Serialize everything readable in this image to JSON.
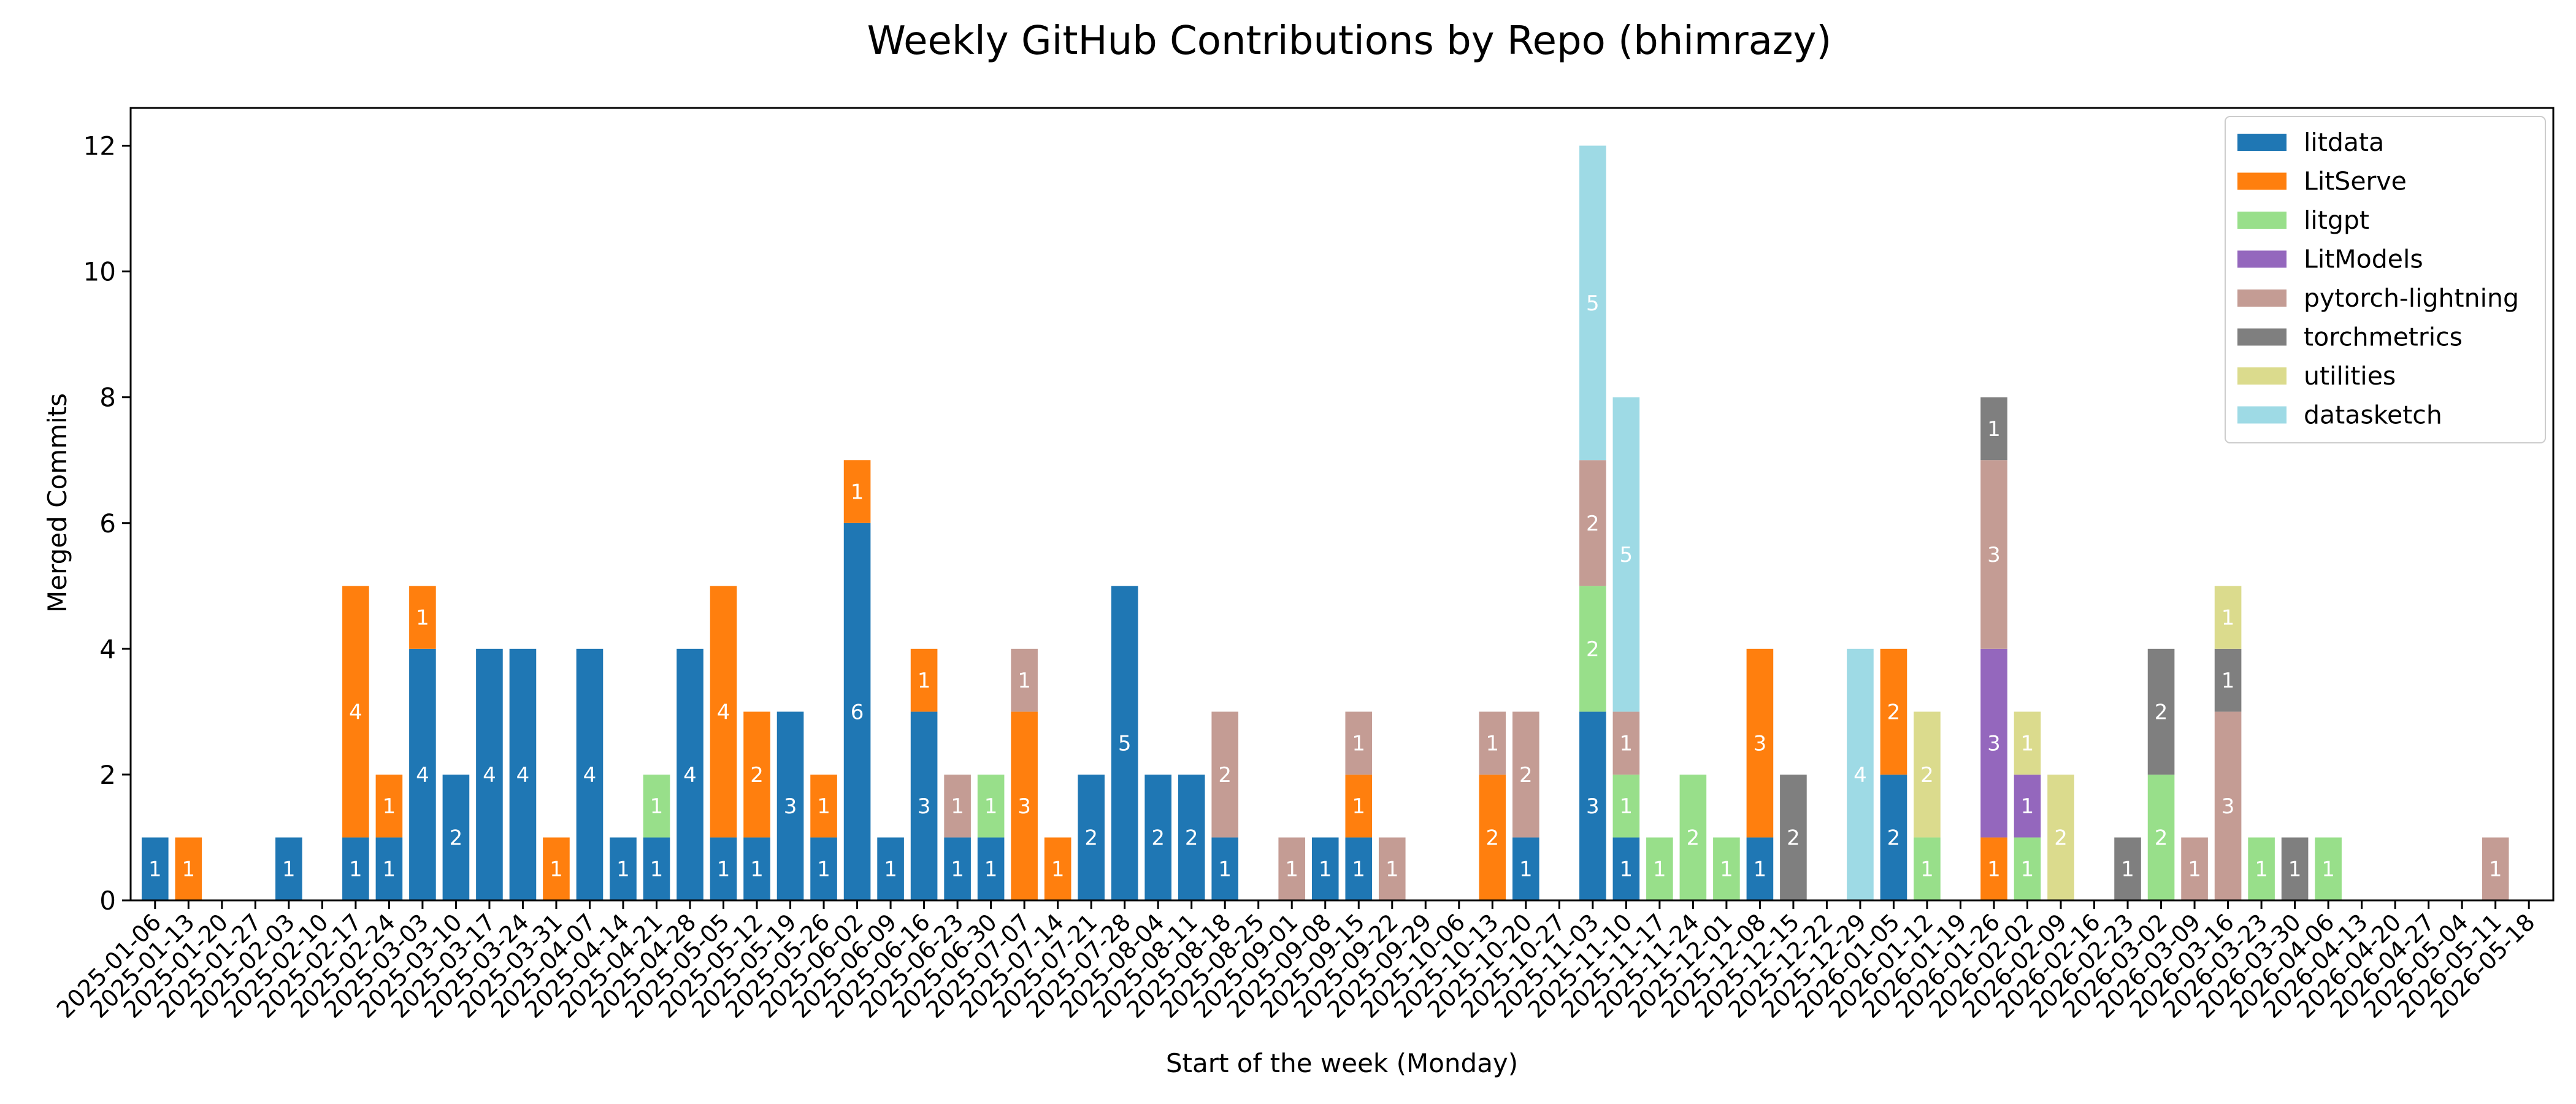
{
  "chart_data": {
    "type": "bar",
    "stacked": true,
    "title": "Weekly GitHub Contributions by Repo (bhimrazy)",
    "xlabel": "Start of the week (Monday)",
    "ylabel": "Merged Commits",
    "ylim": [
      0,
      12.6
    ],
    "yticks": [
      0,
      2,
      4,
      6,
      8,
      10,
      12
    ],
    "legend_position": "top-right",
    "grid": false,
    "categories": [
      "2025-01-06",
      "2025-01-13",
      "2025-01-20",
      "2025-01-27",
      "2025-02-03",
      "2025-02-10",
      "2025-02-17",
      "2025-02-24",
      "2025-03-03",
      "2025-03-10",
      "2025-03-17",
      "2025-03-24",
      "2025-03-31",
      "2025-04-07",
      "2025-04-14",
      "2025-04-21",
      "2025-04-28",
      "2025-05-05",
      "2025-05-12",
      "2025-05-19",
      "2025-05-26",
      "2025-06-02",
      "2025-06-09",
      "2025-06-16",
      "2025-06-23",
      "2025-06-30",
      "2025-07-07",
      "2025-07-14",
      "2025-07-21",
      "2025-07-28",
      "2025-08-04",
      "2025-08-11",
      "2025-08-18",
      "2025-08-25",
      "2025-09-01",
      "2025-09-08",
      "2025-09-15",
      "2025-09-22",
      "2025-09-29",
      "2025-10-06",
      "2025-10-13",
      "2025-10-20",
      "2025-10-27",
      "2025-11-03",
      "2025-11-10",
      "2025-11-17",
      "2025-11-24",
      "2025-12-01",
      "2025-12-08",
      "2025-12-15",
      "2025-12-22",
      "2025-12-29",
      "2026-01-05",
      "2026-01-12",
      "2026-01-19",
      "2026-01-26",
      "2026-02-02",
      "2026-02-09",
      "2026-02-16",
      "2026-02-23",
      "2026-03-02",
      "2026-03-09",
      "2026-03-16",
      "2026-03-23",
      "2026-03-30",
      "2026-04-06",
      "2026-04-13",
      "2026-04-20",
      "2026-04-27",
      "2026-05-04",
      "2026-05-11",
      "2026-05-18"
    ],
    "series": [
      {
        "name": "litdata",
        "color": "#1f77b4",
        "values": [
          1,
          0,
          0,
          0,
          1,
          0,
          1,
          1,
          4,
          2,
          4,
          4,
          0,
          4,
          1,
          1,
          4,
          1,
          1,
          3,
          1,
          6,
          1,
          3,
          1,
          1,
          0,
          0,
          2,
          5,
          2,
          2,
          1,
          0,
          0,
          1,
          1,
          0,
          0,
          0,
          0,
          1,
          0,
          3,
          1,
          0,
          0,
          0,
          1,
          0,
          0,
          0,
          2,
          0,
          0,
          0,
          0,
          0,
          0,
          0,
          0,
          0,
          0,
          0,
          0,
          0,
          0,
          0,
          0,
          0,
          0,
          0
        ]
      },
      {
        "name": "LitServe",
        "color": "#ff7f0e",
        "values": [
          0,
          1,
          0,
          0,
          0,
          0,
          4,
          1,
          1,
          0,
          0,
          0,
          1,
          0,
          0,
          0,
          0,
          4,
          2,
          0,
          1,
          1,
          0,
          1,
          0,
          0,
          3,
          1,
          0,
          0,
          0,
          0,
          0,
          0,
          0,
          0,
          1,
          0,
          0,
          0,
          2,
          0,
          0,
          0,
          0,
          0,
          0,
          0,
          3,
          0,
          0,
          0,
          2,
          0,
          0,
          1,
          0,
          0,
          0,
          0,
          0,
          0,
          0,
          0,
          0,
          0,
          0,
          0,
          0,
          0,
          0,
          0
        ]
      },
      {
        "name": "litgpt",
        "color": "#98df8a",
        "values": [
          0,
          0,
          0,
          0,
          0,
          0,
          0,
          0,
          0,
          0,
          0,
          0,
          0,
          0,
          0,
          1,
          0,
          0,
          0,
          0,
          0,
          0,
          0,
          0,
          0,
          1,
          0,
          0,
          0,
          0,
          0,
          0,
          0,
          0,
          0,
          0,
          0,
          0,
          0,
          0,
          0,
          0,
          0,
          2,
          1,
          1,
          2,
          1,
          0,
          0,
          0,
          0,
          0,
          1,
          0,
          0,
          1,
          0,
          0,
          0,
          2,
          0,
          0,
          1,
          0,
          1,
          0,
          0,
          0,
          0,
          0,
          0
        ]
      },
      {
        "name": "LitModels",
        "color": "#9467bd",
        "values": [
          0,
          0,
          0,
          0,
          0,
          0,
          0,
          0,
          0,
          0,
          0,
          0,
          0,
          0,
          0,
          0,
          0,
          0,
          0,
          0,
          0,
          0,
          0,
          0,
          0,
          0,
          0,
          0,
          0,
          0,
          0,
          0,
          0,
          0,
          0,
          0,
          0,
          0,
          0,
          0,
          0,
          0,
          0,
          0,
          0,
          0,
          0,
          0,
          0,
          0,
          0,
          0,
          0,
          0,
          0,
          3,
          1,
          0,
          0,
          0,
          0,
          0,
          0,
          0,
          0,
          0,
          0,
          0,
          0,
          0,
          0,
          0
        ]
      },
      {
        "name": "pytorch-lightning",
        "color": "#c49c94",
        "values": [
          0,
          0,
          0,
          0,
          0,
          0,
          0,
          0,
          0,
          0,
          0,
          0,
          0,
          0,
          0,
          0,
          0,
          0,
          0,
          0,
          0,
          0,
          0,
          0,
          1,
          0,
          1,
          0,
          0,
          0,
          0,
          0,
          2,
          0,
          1,
          0,
          1,
          1,
          0,
          0,
          1,
          2,
          0,
          2,
          1,
          0,
          0,
          0,
          0,
          0,
          0,
          0,
          0,
          0,
          0,
          3,
          0,
          0,
          0,
          0,
          0,
          1,
          3,
          0,
          0,
          0,
          0,
          0,
          0,
          0,
          1,
          0
        ]
      },
      {
        "name": "torchmetrics",
        "color": "#7f7f7f",
        "values": [
          0,
          0,
          0,
          0,
          0,
          0,
          0,
          0,
          0,
          0,
          0,
          0,
          0,
          0,
          0,
          0,
          0,
          0,
          0,
          0,
          0,
          0,
          0,
          0,
          0,
          0,
          0,
          0,
          0,
          0,
          0,
          0,
          0,
          0,
          0,
          0,
          0,
          0,
          0,
          0,
          0,
          0,
          0,
          0,
          0,
          0,
          0,
          0,
          0,
          2,
          0,
          0,
          0,
          0,
          0,
          1,
          0,
          0,
          0,
          1,
          2,
          0,
          1,
          0,
          1,
          0,
          0,
          0,
          0,
          0,
          0,
          0
        ]
      },
      {
        "name": "utilities",
        "color": "#dbdb8d",
        "values": [
          0,
          0,
          0,
          0,
          0,
          0,
          0,
          0,
          0,
          0,
          0,
          0,
          0,
          0,
          0,
          0,
          0,
          0,
          0,
          0,
          0,
          0,
          0,
          0,
          0,
          0,
          0,
          0,
          0,
          0,
          0,
          0,
          0,
          0,
          0,
          0,
          0,
          0,
          0,
          0,
          0,
          0,
          0,
          0,
          0,
          0,
          0,
          0,
          0,
          0,
          0,
          0,
          0,
          2,
          0,
          0,
          1,
          2,
          0,
          0,
          0,
          0,
          1,
          0,
          0,
          0,
          0,
          0,
          0,
          0,
          0,
          0
        ]
      },
      {
        "name": "datasketch",
        "color": "#9edae5",
        "values": [
          0,
          0,
          0,
          0,
          0,
          0,
          0,
          0,
          0,
          0,
          0,
          0,
          0,
          0,
          0,
          0,
          0,
          0,
          0,
          0,
          0,
          0,
          0,
          0,
          0,
          0,
          0,
          0,
          0,
          0,
          0,
          0,
          0,
          0,
          0,
          0,
          0,
          0,
          0,
          0,
          0,
          0,
          0,
          5,
          5,
          0,
          0,
          0,
          0,
          0,
          0,
          4,
          0,
          0,
          0,
          0,
          0,
          0,
          0,
          0,
          0,
          0,
          0,
          0,
          0,
          0,
          0,
          0,
          0,
          0,
          0,
          0
        ]
      }
    ]
  }
}
